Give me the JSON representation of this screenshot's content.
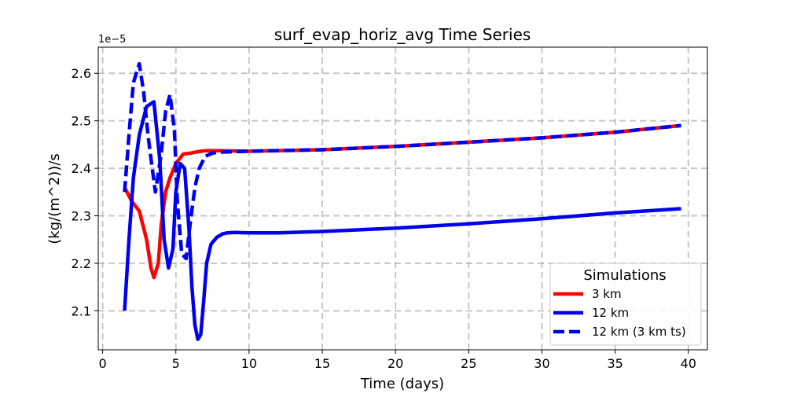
{
  "chart_data": {
    "type": "line",
    "title": "surf_evap_horiz_avg Time Series",
    "xlabel": "Time (days)",
    "ylabel": "(kg/(m^2))/s",
    "y_offset_label": "1e−5",
    "xlim": [
      -0.3,
      41.3
    ],
    "ylim": [
      2.018,
      2.655
    ],
    "x_ticks": [
      0,
      5,
      10,
      15,
      20,
      25,
      30,
      35,
      40
    ],
    "y_ticks": [
      2.1,
      2.2,
      2.3,
      2.4,
      2.5,
      2.6
    ],
    "x_tick_labels": [
      "0",
      "5",
      "10",
      "15",
      "20",
      "25",
      "30",
      "35",
      "40"
    ],
    "y_tick_labels": [
      "2.1",
      "2.2",
      "2.3",
      "2.4",
      "2.5",
      "2.6"
    ],
    "grid": true,
    "legend_title": "Simulations",
    "legend_position": "lower-right",
    "series": [
      {
        "name": "3 km",
        "color": "#ff0000",
        "dash": "solid",
        "x": [
          1.5,
          2.0,
          2.5,
          3.0,
          3.3,
          3.5,
          3.8,
          4.0,
          4.3,
          4.6,
          5.0,
          5.5,
          6.0,
          6.5,
          7.0,
          8.0,
          10.0,
          15.0,
          20.0,
          25.0,
          30.0,
          35.0,
          39.5
        ],
        "y": [
          2.36,
          2.33,
          2.31,
          2.25,
          2.19,
          2.17,
          2.2,
          2.28,
          2.35,
          2.38,
          2.41,
          2.43,
          2.432,
          2.435,
          2.437,
          2.437,
          2.436,
          2.439,
          2.446,
          2.455,
          2.464,
          2.476,
          2.49
        ]
      },
      {
        "name": "12 km",
        "color": "#0000ee",
        "dash": "solid",
        "x": [
          1.5,
          1.8,
          2.1,
          2.5,
          3.0,
          3.5,
          3.9,
          4.2,
          4.5,
          4.8,
          5.0,
          5.3,
          5.6,
          5.9,
          6.1,
          6.3,
          6.5,
          6.7,
          6.9,
          7.1,
          7.4,
          7.8,
          8.2,
          8.5,
          9.0,
          10.0,
          12.0,
          15.0,
          20.0,
          25.0,
          30.0,
          35.0,
          39.5
        ],
        "y": [
          2.1,
          2.25,
          2.38,
          2.47,
          2.53,
          2.54,
          2.42,
          2.25,
          2.19,
          2.23,
          2.35,
          2.41,
          2.4,
          2.27,
          2.15,
          2.07,
          2.04,
          2.05,
          2.12,
          2.2,
          2.24,
          2.255,
          2.262,
          2.264,
          2.265,
          2.264,
          2.264,
          2.267,
          2.274,
          2.283,
          2.294,
          2.306,
          2.315
        ]
      },
      {
        "name": "12 km (3 km ts)",
        "color": "#0000ee",
        "dash": "dashed",
        "x": [
          1.5,
          1.8,
          2.1,
          2.5,
          2.8,
          3.1,
          3.3,
          3.6,
          4.0,
          4.3,
          4.6,
          4.9,
          5.1,
          5.4,
          5.7,
          6.0,
          6.3,
          6.6,
          7.0,
          7.5,
          8.0,
          10.0,
          15.0,
          20.0,
          25.0,
          30.0,
          35.0,
          39.5
        ],
        "y": [
          2.35,
          2.47,
          2.58,
          2.62,
          2.56,
          2.47,
          2.42,
          2.35,
          2.43,
          2.52,
          2.555,
          2.48,
          2.33,
          2.22,
          2.21,
          2.29,
          2.36,
          2.4,
          2.425,
          2.432,
          2.434,
          2.436,
          2.439,
          2.446,
          2.455,
          2.464,
          2.476,
          2.49
        ]
      }
    ]
  }
}
